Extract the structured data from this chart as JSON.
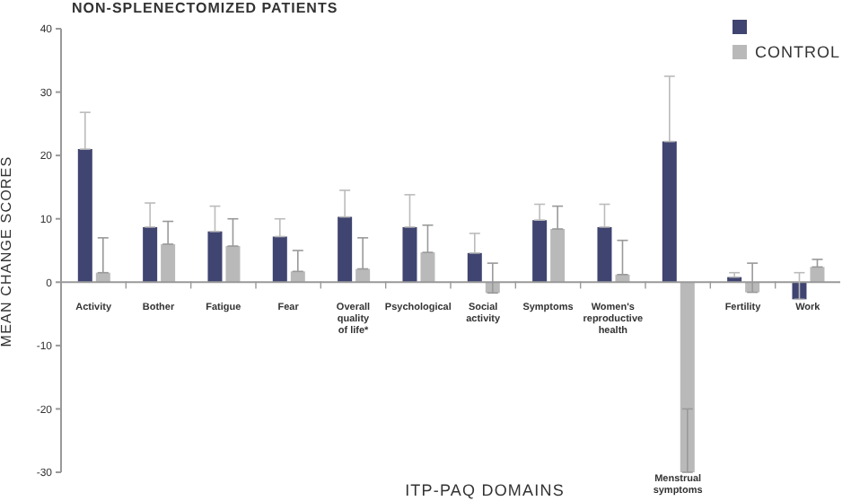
{
  "chart_data": {
    "type": "bar",
    "title": "NON-SPLENECTOMIZED PATIENTS",
    "xlabel": "ITP-PAQ DOMAINS",
    "ylabel": "MEAN CHANGE SCORES",
    "categories": [
      "Activity",
      "Bother",
      "Fatigue",
      "Fear",
      "Overall quality of life*",
      "Psychological",
      "Social activity",
      "Symptoms",
      "Women's reproductive health",
      "Menstrual symptoms",
      "Fertility",
      "Work"
    ],
    "series": [
      {
        "color": "#3f4470",
        "values": [
          21,
          8.7,
          8,
          7.2,
          10.3,
          8.7,
          4.6,
          9.8,
          8.7,
          22.2,
          0.8,
          -2.7
        ],
        "errors": [
          [
            21,
            26.8
          ],
          [
            8.7,
            12.5
          ],
          [
            8,
            12
          ],
          [
            7.2,
            10
          ],
          [
            10.3,
            14.5
          ],
          [
            8.7,
            13.8
          ],
          [
            4.6,
            7.7
          ],
          [
            9.8,
            12.3
          ],
          [
            8.7,
            12.3
          ],
          [
            22.2,
            32.5
          ],
          [
            0.8,
            1.5
          ],
          [
            -2.7,
            1.5
          ]
        ]
      },
      {
        "name": "CONTROL",
        "color": "#b9b9b9",
        "values": [
          1.5,
          6,
          5.7,
          1.7,
          2.1,
          4.7,
          -1.7,
          8.4,
          1.2,
          -30,
          -1.6,
          2.4
        ],
        "errors": [
          [
            1.5,
            7
          ],
          [
            6,
            9.6
          ],
          [
            5.7,
            10
          ],
          [
            1.7,
            5
          ],
          [
            2.1,
            7
          ],
          [
            4.7,
            9
          ],
          [
            -1.7,
            3
          ],
          [
            8.4,
            12
          ],
          [
            1.2,
            6.6
          ],
          [
            -30,
            -20
          ],
          [
            -1.6,
            3
          ],
          [
            2.4,
            3.6
          ]
        ]
      }
    ],
    "ylim": [
      -30,
      40
    ],
    "yticks": [
      -30,
      -20,
      -10,
      0,
      10,
      20,
      30,
      40
    ],
    "legend": "top right",
    "grid": false
  }
}
